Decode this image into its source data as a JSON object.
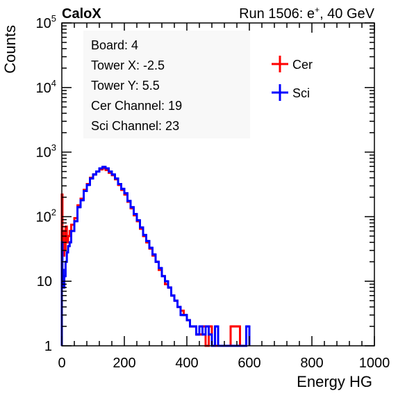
{
  "header": {
    "left": "CaloX",
    "right_prefix": "Run 1506: e",
    "right_sup": "+",
    "right_suffix": ", 40 GeV"
  },
  "info": [
    "Board: 4",
    "Tower X: -2.5",
    "Tower Y: 5.5",
    "Cer Channel: 19",
    "Sci Channel: 23"
  ],
  "chart_data": {
    "type": "line",
    "title": "",
    "xlabel": "Energy HG",
    "ylabel": "Counts",
    "xlim": [
      0,
      1000
    ],
    "ylim": [
      1,
      100000
    ],
    "yscale": "log",
    "grid": false,
    "legend_position": "top-right",
    "x_ticks": [
      0,
      200,
      400,
      600,
      800,
      1000
    ],
    "y_ticks": [
      1,
      10,
      100,
      1000,
      10000,
      100000
    ],
    "y_tick_labels": [
      {
        "base": "1",
        "exp": ""
      },
      {
        "base": "10",
        "exp": ""
      },
      {
        "base": "10",
        "exp": "2"
      },
      {
        "base": "10",
        "exp": "3"
      },
      {
        "base": "10",
        "exp": "4"
      },
      {
        "base": "10",
        "exp": "5"
      }
    ],
    "series": [
      {
        "name": "Cer",
        "color": "#ff0000",
        "x": [
          0,
          2,
          5,
          8,
          12,
          16,
          20,
          25,
          30,
          40,
          50,
          60,
          70,
          80,
          90,
          100,
          110,
          120,
          130,
          140,
          150,
          160,
          170,
          180,
          190,
          200,
          210,
          220,
          230,
          240,
          250,
          260,
          270,
          280,
          290,
          300,
          310,
          320,
          330,
          340,
          350,
          360,
          370,
          380,
          390,
          400,
          410,
          420,
          430,
          440,
          450,
          460,
          470,
          480,
          490,
          500,
          510,
          520,
          530,
          540,
          550,
          560
        ],
        "y": [
          220,
          60,
          25,
          30,
          70,
          40,
          50,
          60,
          75,
          95,
          150,
          190,
          260,
          320,
          400,
          450,
          500,
          540,
          560,
          530,
          480,
          440,
          380,
          310,
          260,
          220,
          170,
          135,
          105,
          85,
          65,
          50,
          40,
          32,
          25,
          20,
          15,
          12,
          9,
          8,
          6,
          5,
          4,
          3.5,
          3,
          2.5,
          2,
          2,
          1.5,
          1.5,
          2,
          1,
          2,
          1,
          1,
          1,
          1,
          1,
          1,
          2,
          2,
          2
        ]
      },
      {
        "name": "Sci",
        "color": "#0000ff",
        "x": [
          0,
          2,
          5,
          8,
          12,
          16,
          20,
          25,
          30,
          40,
          50,
          60,
          70,
          80,
          90,
          100,
          110,
          120,
          130,
          140,
          150,
          160,
          170,
          180,
          190,
          200,
          210,
          220,
          230,
          240,
          250,
          260,
          270,
          280,
          290,
          300,
          310,
          320,
          330,
          340,
          350,
          360,
          370,
          380,
          390,
          400,
          410,
          420,
          430,
          440,
          450,
          460,
          470,
          480,
          490,
          500,
          510,
          520,
          530,
          540,
          550,
          560,
          570,
          580,
          590
        ],
        "y": [
          40,
          15,
          8,
          12,
          20,
          28,
          35,
          40,
          60,
          85,
          140,
          180,
          250,
          310,
          390,
          450,
          500,
          560,
          590,
          560,
          500,
          450,
          390,
          320,
          270,
          230,
          175,
          140,
          110,
          88,
          68,
          52,
          42,
          33,
          26,
          20,
          16,
          12,
          10,
          8,
          6,
          5,
          4,
          3,
          3,
          2.5,
          2,
          2,
          1.5,
          2,
          1.5,
          2,
          1.5,
          1,
          2,
          1,
          1,
          1,
          1,
          1,
          1,
          1,
          1,
          1,
          2
        ]
      }
    ]
  }
}
